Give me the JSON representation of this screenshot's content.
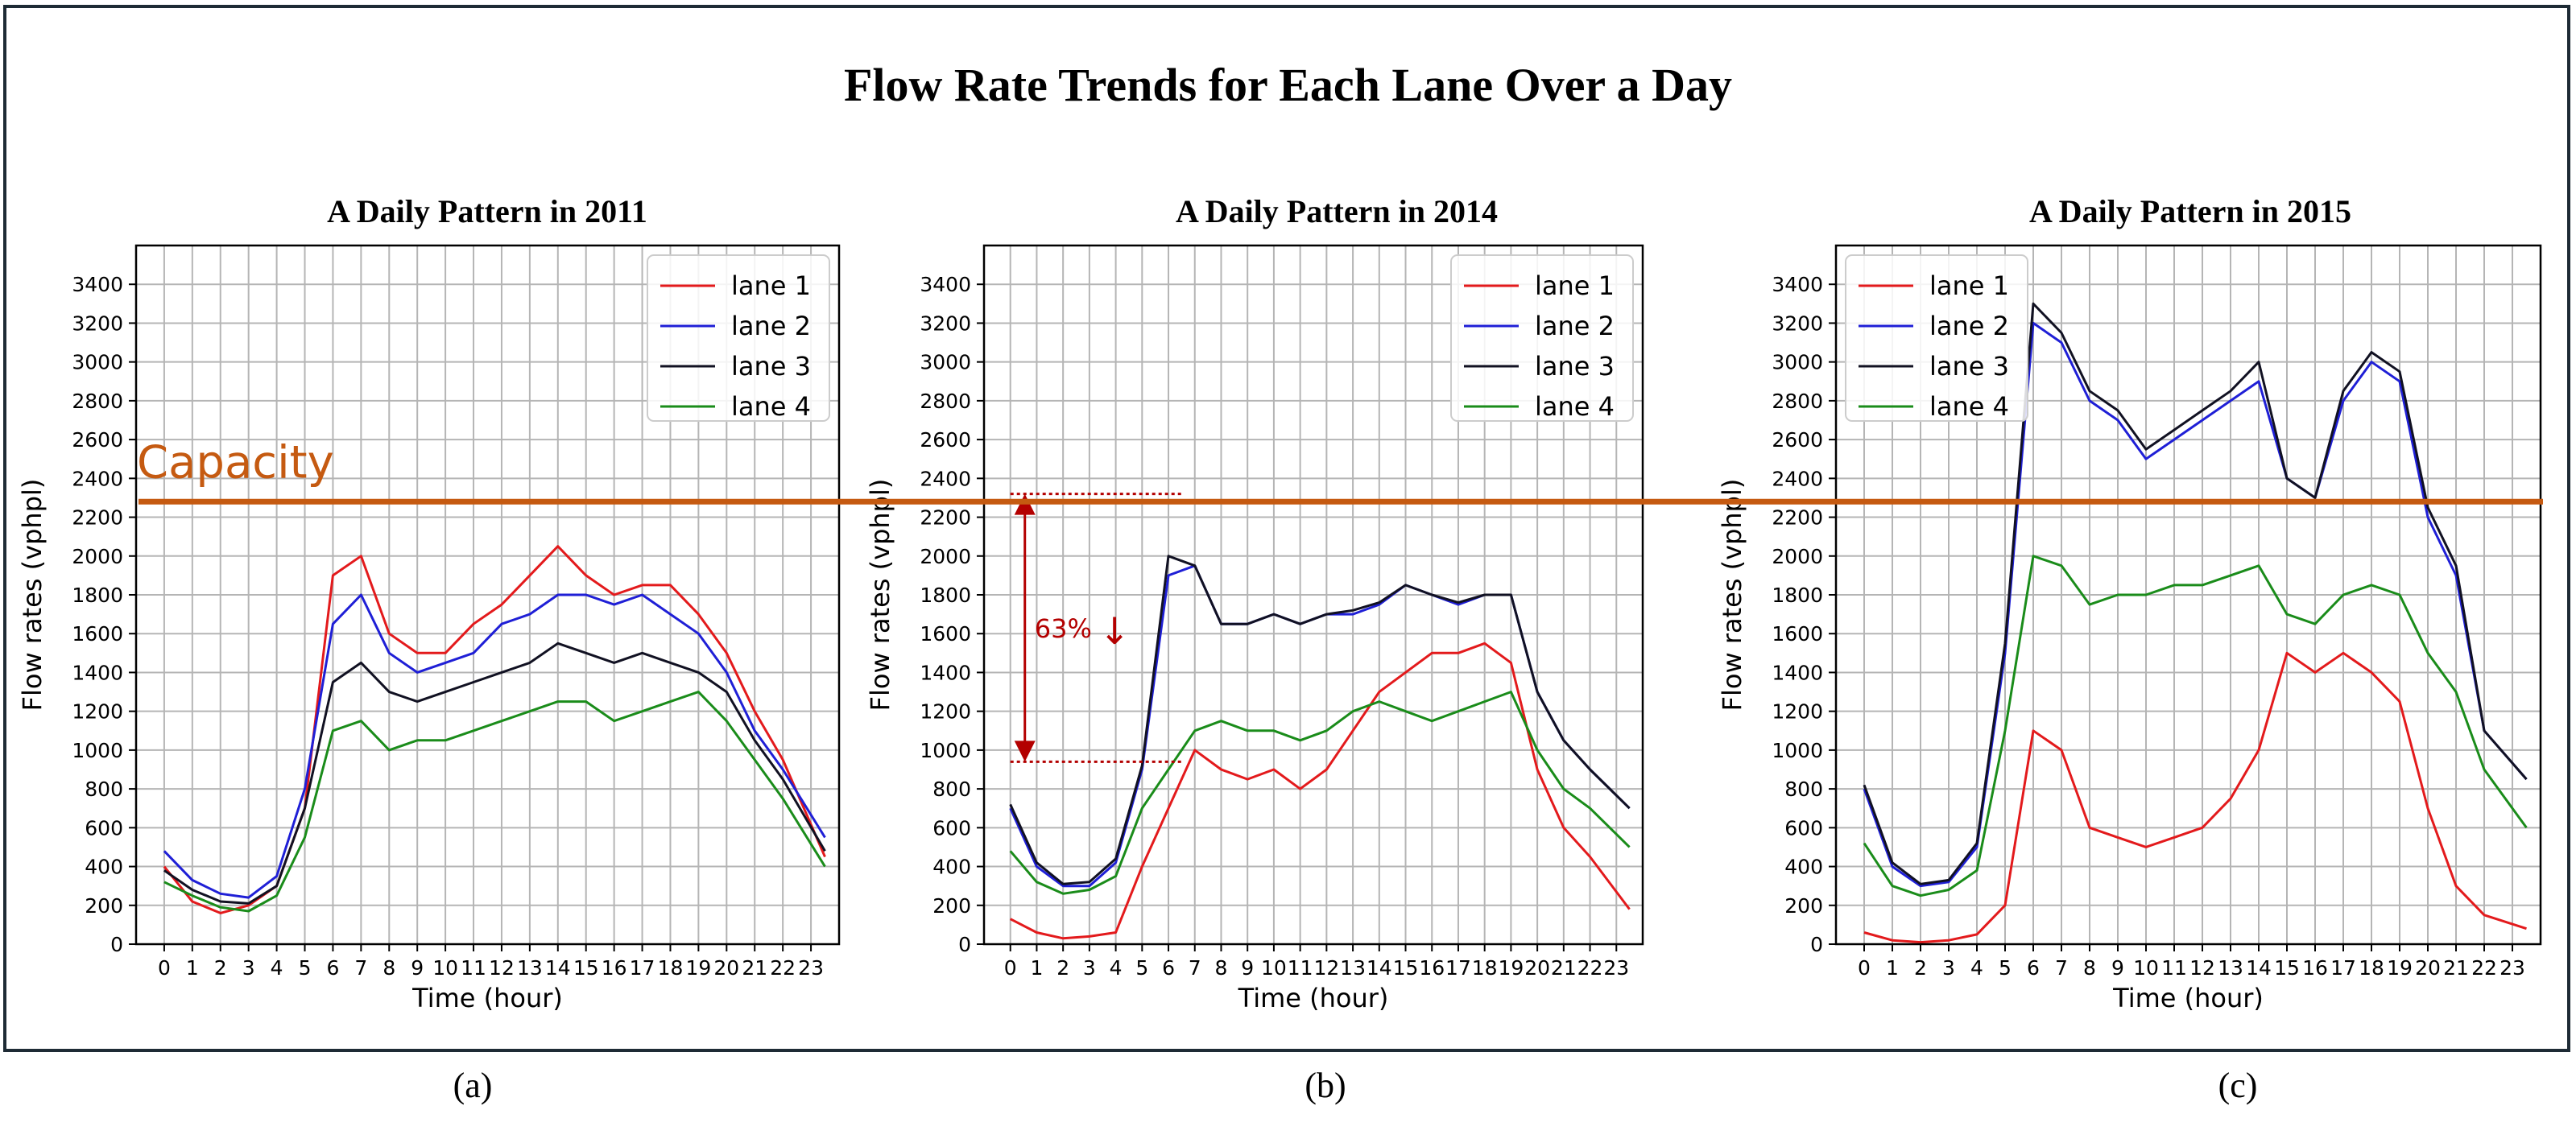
{
  "figure": {
    "title": "Flow Rate Trends for Each Lane Over a Day",
    "captions": [
      "(a)",
      "(b)",
      "(c)"
    ],
    "capacity_label": "Capacity",
    "capacity_value": 2280,
    "annotation": {
      "label": "63%",
      "arrow": "↓",
      "top_value": 2320,
      "bottom_value": 940,
      "x_from": 0,
      "x_to": 6.5
    }
  },
  "colors": {
    "lane 1": "#e31a1c",
    "lane 2": "#1f1fd6",
    "lane 3": "#111122",
    "lane 4": "#1a8c1a",
    "capacity": "#c55a11",
    "annotation": "#b30000",
    "frame": "#1e2b35"
  },
  "chart_data": [
    {
      "type": "line",
      "title": "A Daily Pattern in 2011",
      "xlabel": "Time (hour)",
      "ylabel": "Flow rates (vphpl)",
      "xlim": [
        -1,
        24
      ],
      "ylim": [
        0,
        3600
      ],
      "xticks": [
        0,
        1,
        2,
        3,
        4,
        5,
        6,
        7,
        8,
        9,
        10,
        11,
        12,
        13,
        14,
        15,
        16,
        17,
        18,
        19,
        20,
        21,
        22,
        23
      ],
      "yticks": [
        0,
        200,
        400,
        600,
        800,
        1000,
        1200,
        1400,
        1600,
        1800,
        2000,
        2200,
        2400,
        2600,
        2800,
        3000,
        3200,
        3400
      ],
      "grid": true,
      "legend": "top-right",
      "x": [
        0,
        1,
        2,
        3,
        4,
        5,
        6,
        7,
        8,
        9,
        10,
        11,
        12,
        13,
        14,
        15,
        16,
        17,
        18,
        19,
        20,
        21,
        22,
        23.5
      ],
      "series": [
        {
          "name": "lane 1",
          "values": [
            400,
            220,
            160,
            200,
            300,
            700,
            1900,
            2000,
            1600,
            1500,
            1500,
            1650,
            1750,
            1900,
            2050,
            1900,
            1800,
            1850,
            1850,
            1700,
            1500,
            1200,
            950,
            450
          ]
        },
        {
          "name": "lane 2",
          "values": [
            480,
            330,
            260,
            240,
            350,
            800,
            1650,
            1800,
            1500,
            1400,
            1450,
            1500,
            1650,
            1700,
            1800,
            1800,
            1750,
            1800,
            1700,
            1600,
            1400,
            1100,
            900,
            550
          ]
        },
        {
          "name": "lane 3",
          "values": [
            380,
            280,
            220,
            210,
            300,
            700,
            1350,
            1450,
            1300,
            1250,
            1300,
            1350,
            1400,
            1450,
            1550,
            1500,
            1450,
            1500,
            1450,
            1400,
            1300,
            1050,
            850,
            480
          ]
        },
        {
          "name": "lane 4",
          "values": [
            320,
            250,
            190,
            170,
            250,
            550,
            1100,
            1150,
            1000,
            1050,
            1050,
            1100,
            1150,
            1200,
            1250,
            1250,
            1150,
            1200,
            1250,
            1300,
            1150,
            950,
            750,
            400
          ]
        }
      ]
    },
    {
      "type": "line",
      "title": "A Daily Pattern in 2014",
      "xlabel": "Time (hour)",
      "ylabel": "Flow rates (vphpl)",
      "xlim": [
        -1,
        24
      ],
      "ylim": [
        0,
        3600
      ],
      "xticks": [
        0,
        1,
        2,
        3,
        4,
        5,
        6,
        7,
        8,
        9,
        10,
        11,
        12,
        13,
        14,
        15,
        16,
        17,
        18,
        19,
        20,
        21,
        22,
        23
      ],
      "yticks": [
        0,
        200,
        400,
        600,
        800,
        1000,
        1200,
        1400,
        1600,
        1800,
        2000,
        2200,
        2400,
        2600,
        2800,
        3000,
        3200,
        3400
      ],
      "grid": true,
      "legend": "top-right",
      "x": [
        0,
        1,
        2,
        3,
        4,
        5,
        6,
        7,
        8,
        9,
        10,
        11,
        12,
        13,
        14,
        15,
        16,
        17,
        18,
        19,
        20,
        21,
        22,
        23.5
      ],
      "series": [
        {
          "name": "lane 1",
          "values": [
            130,
            60,
            30,
            40,
            60,
            400,
            700,
            1000,
            900,
            850,
            900,
            800,
            900,
            1100,
            1300,
            1400,
            1500,
            1500,
            1550,
            1450,
            900,
            600,
            450,
            180
          ]
        },
        {
          "name": "lane 2",
          "values": [
            700,
            400,
            300,
            300,
            420,
            900,
            1900,
            1950,
            1650,
            1650,
            1700,
            1650,
            1700,
            1700,
            1750,
            1850,
            1800,
            1750,
            1800,
            1800,
            1300,
            1050,
            900,
            700
          ]
        },
        {
          "name": "lane 3",
          "values": [
            720,
            420,
            310,
            320,
            440,
            920,
            2000,
            1950,
            1650,
            1650,
            1700,
            1650,
            1700,
            1720,
            1760,
            1850,
            1800,
            1760,
            1800,
            1800,
            1300,
            1050,
            900,
            700
          ]
        },
        {
          "name": "lane 4",
          "values": [
            480,
            320,
            260,
            280,
            350,
            700,
            900,
            1100,
            1150,
            1100,
            1100,
            1050,
            1100,
            1200,
            1250,
            1200,
            1150,
            1200,
            1250,
            1300,
            1000,
            800,
            700,
            500
          ]
        }
      ]
    },
    {
      "type": "line",
      "title": "A Daily Pattern in 2015",
      "xlabel": "Time (hour)",
      "ylabel": "Flow rates (vphpl)",
      "xlim": [
        -1,
        24
      ],
      "ylim": [
        0,
        3600
      ],
      "xticks": [
        0,
        1,
        2,
        3,
        4,
        5,
        6,
        7,
        8,
        9,
        10,
        11,
        12,
        13,
        14,
        15,
        16,
        17,
        18,
        19,
        20,
        21,
        22,
        23
      ],
      "yticks": [
        0,
        200,
        400,
        600,
        800,
        1000,
        1200,
        1400,
        1600,
        1800,
        2000,
        2200,
        2400,
        2600,
        2800,
        3000,
        3200,
        3400
      ],
      "grid": true,
      "legend": "top-left",
      "x": [
        0,
        1,
        2,
        3,
        4,
        5,
        6,
        7,
        8,
        9,
        10,
        11,
        12,
        13,
        14,
        15,
        16,
        17,
        18,
        19,
        20,
        21,
        22,
        23.5
      ],
      "series": [
        {
          "name": "lane 1",
          "values": [
            60,
            20,
            10,
            20,
            50,
            200,
            1100,
            1000,
            600,
            550,
            500,
            550,
            600,
            750,
            1000,
            1500,
            1400,
            1500,
            1400,
            1250,
            700,
            300,
            150,
            80
          ]
        },
        {
          "name": "lane 2",
          "values": [
            800,
            400,
            300,
            320,
            500,
            1500,
            3200,
            3100,
            2800,
            2700,
            2500,
            2600,
            2700,
            2800,
            2900,
            2400,
            2300,
            2800,
            3000,
            2900,
            2200,
            1900,
            1100,
            850
          ]
        },
        {
          "name": "lane 3",
          "values": [
            820,
            420,
            310,
            330,
            520,
            1550,
            3300,
            3150,
            2850,
            2750,
            2550,
            2650,
            2750,
            2850,
            3000,
            2400,
            2300,
            2850,
            3050,
            2950,
            2250,
            1950,
            1100,
            850
          ]
        },
        {
          "name": "lane 4",
          "values": [
            520,
            300,
            250,
            280,
            380,
            1100,
            2000,
            1950,
            1750,
            1800,
            1800,
            1850,
            1850,
            1900,
            1950,
            1700,
            1650,
            1800,
            1850,
            1800,
            1500,
            1300,
            900,
            600
          ]
        }
      ]
    }
  ]
}
